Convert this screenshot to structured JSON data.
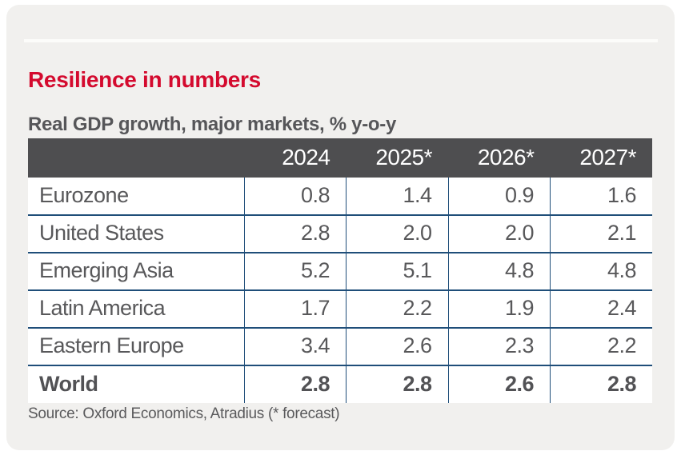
{
  "panel": {
    "title": "Resilience in numbers",
    "subtitle": "Real GDP growth, major markets, % y-o-y",
    "source": "Source: Oxford Economics, Atradius (* forecast)"
  },
  "colors": {
    "accent_red": "#d40a2e",
    "header_gray": "#4e4e50",
    "grid_navy": "#1f4e79",
    "body_text_gray": "#58585a",
    "card_background": "#f1f0ee"
  },
  "chart_data": {
    "type": "table",
    "title": "Resilience in numbers",
    "subtitle": "Real GDP growth, major markets, % y-o-y",
    "unit": "% y-o-y",
    "columns": [
      "2024",
      "2025*",
      "2026*",
      "2027*"
    ],
    "rows": [
      {
        "name": "Eurozone",
        "values": [
          "0.8",
          "1.4",
          "0.9",
          "1.6"
        ],
        "bold": false
      },
      {
        "name": "United States",
        "values": [
          "2.8",
          "2.0",
          "2.0",
          "2.1"
        ],
        "bold": false
      },
      {
        "name": "Emerging Asia",
        "values": [
          "5.2",
          "5.1",
          "4.8",
          "4.8"
        ],
        "bold": false
      },
      {
        "name": "Latin America",
        "values": [
          "1.7",
          "2.2",
          "1.9",
          "2.4"
        ],
        "bold": false
      },
      {
        "name": "Eastern Europe",
        "values": [
          "3.4",
          "2.6",
          "2.3",
          "2.2"
        ],
        "bold": false
      },
      {
        "name": "World",
        "values": [
          "2.8",
          "2.8",
          "2.6",
          "2.8"
        ],
        "bold": true
      }
    ],
    "source": "Source: Oxford Economics, Atradius (* forecast)",
    "legend_position": "none",
    "grid": true
  }
}
